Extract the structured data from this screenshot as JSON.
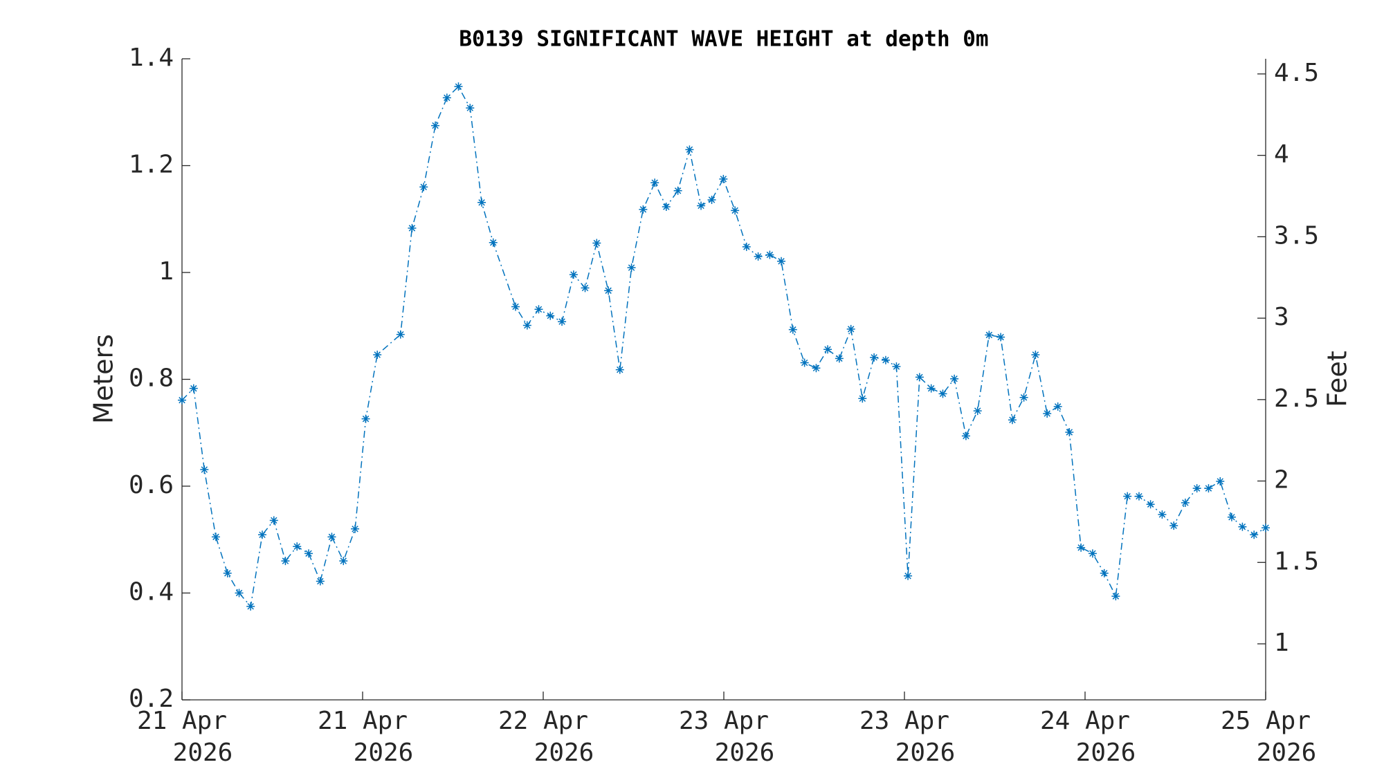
{
  "chart_data": {
    "type": "line",
    "title": "B0139 SIGNIFICANT WAVE HEIGHT at depth 0m",
    "y_label": "Meters",
    "y2_label": "Feet",
    "x": [
      0,
      1.03,
      1.98,
      3.0,
      4.03,
      5.06,
      6.08,
      7.11,
      8.14,
      9.16,
      10.19,
      11.22,
      12.25,
      13.27,
      14.3,
      15.33,
      16.28,
      17.3,
      19.36,
      20.38,
      21.41,
      22.44,
      23.47,
      24.49,
      25.52,
      26.55,
      27.57,
      29.55,
      30.58,
      31.6,
      32.63,
      33.66,
      34.69,
      35.71,
      36.74,
      37.77,
      38.79,
      39.82,
      40.85,
      41.88,
      42.9,
      43.93,
      44.96,
      45.98,
      46.93,
      47.96,
      48.99,
      50.01,
      51.04,
      52.07,
      53.09,
      54.12,
      55.15,
      56.18,
      57.2,
      58.23,
      59.26,
      60.28,
      61.31,
      62.34,
      63.29,
      64.31,
      65.34,
      66.37,
      67.4,
      68.42,
      69.45,
      70.48,
      71.5,
      72.53,
      73.56,
      74.58,
      75.61,
      76.64,
      77.59,
      78.61,
      79.64,
      80.67,
      81.7,
      82.72,
      83.75,
      84.78,
      85.8,
      86.83,
      87.86,
      88.88,
      89.91,
      90.94,
      91.97,
      92.99,
      93.94,
      94.97,
      96.0
    ],
    "series": [
      {
        "name": "Significant wave height",
        "color": "#0072bd",
        "values": [
          0.761,
          0.783,
          0.631,
          0.505,
          0.437,
          0.4,
          0.375,
          0.509,
          0.536,
          0.46,
          0.487,
          0.474,
          0.422,
          0.505,
          0.46,
          0.52,
          0.726,
          0.846,
          0.884,
          1.083,
          1.16,
          1.275,
          1.327,
          1.348,
          1.308,
          1.131,
          1.056,
          0.936,
          0.901,
          0.931,
          0.919,
          0.908,
          0.996,
          0.971,
          1.055,
          0.966,
          0.818,
          1.009,
          1.118,
          1.168,
          1.123,
          1.153,
          1.23,
          1.125,
          1.136,
          1.175,
          1.116,
          1.048,
          1.03,
          1.033,
          1.021,
          0.893,
          0.831,
          0.821,
          0.856,
          0.839,
          0.894,
          0.764,
          0.841,
          0.836,
          0.824,
          0.432,
          0.804,
          0.783,
          0.773,
          0.801,
          0.694,
          0.741,
          0.883,
          0.879,
          0.724,
          0.766,
          0.846,
          0.736,
          0.749,
          0.701,
          0.485,
          0.474,
          0.437,
          0.394,
          0.581,
          0.581,
          0.566,
          0.547,
          0.526,
          0.569,
          0.596,
          0.596,
          0.609,
          0.542,
          0.524,
          0.509,
          0.522
        ]
      }
    ],
    "xlim": [
      0,
      96
    ],
    "xticks": [
      {
        "value": 0,
        "label": "21 Apr 2026"
      },
      {
        "value": 16,
        "label": "21 Apr 2026"
      },
      {
        "value": 32,
        "label": "22 Apr 2026"
      },
      {
        "value": 48,
        "label": "23 Apr 2026"
      },
      {
        "value": 64,
        "label": "23 Apr 2026"
      },
      {
        "value": 80,
        "label": "24 Apr 2026"
      },
      {
        "value": 96,
        "label": "25 Apr 2026"
      }
    ],
    "ylim": [
      0.2,
      1.4
    ],
    "yticks": [
      0.2,
      0.4,
      0.6,
      0.8,
      1,
      1.2,
      1.4
    ],
    "y2lim": [
      0.656,
      4.593
    ],
    "y2ticks": [
      1,
      1.5,
      2,
      2.5,
      3,
      3.5,
      4,
      4.5
    ],
    "grid": false
  }
}
